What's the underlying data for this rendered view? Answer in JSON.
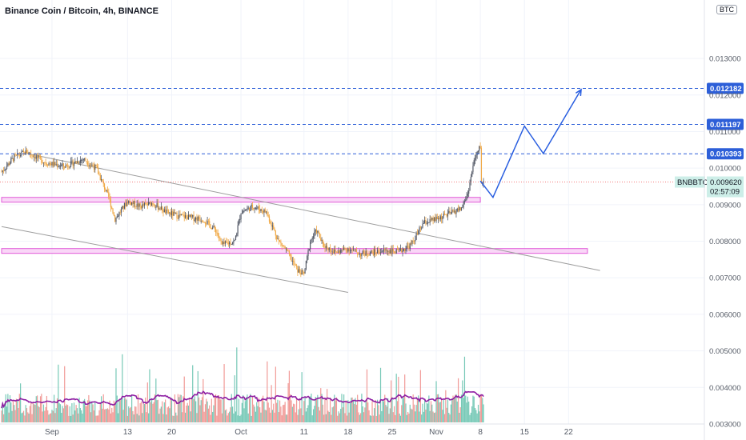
{
  "header": {
    "title": "Binance Coin / Bitcoin, 4h, BINANCE",
    "currency": "BTC"
  },
  "colors": {
    "up": "#525866",
    "down": "#f0a844",
    "vol_up": "#5fbfaa",
    "vol_down": "#ef8a86",
    "vol_ma": "#8e1fa3",
    "level_line": "#2d5fd8",
    "zone_fill": "#f7c6f4",
    "zone_border": "#e05bd8",
    "trend_line": "#9e9e9e",
    "projection": "#2a5fe0",
    "last_price_label": "#cdeee8"
  },
  "chart_data": {
    "type": "candlestick",
    "symbol": "BNBBTC",
    "interval": "4h",
    "y_axis": {
      "scale": "linear",
      "ylim": [
        0.003,
        0.0146
      ],
      "ticks": [
        "0.013000",
        "0.012000",
        "0.011000",
        "0.010000",
        "0.009000",
        "0.008000",
        "0.007000",
        "0.006000",
        "0.005000",
        "0.004000",
        "0.003000"
      ]
    },
    "x_axis": {
      "labels": [
        "Sep",
        "13",
        "20",
        "Oct",
        "11",
        "18",
        "25",
        "Nov",
        "8",
        "15",
        "22"
      ],
      "label_dates": [
        "2021-09-01",
        "2021-09-13",
        "2021-09-20",
        "2021-10-01",
        "2021-10-11",
        "2021-10-18",
        "2021-10-25",
        "2021-11-01",
        "2021-11-08",
        "2021-11-15",
        "2021-11-22"
      ]
    },
    "price_path": {
      "description": "piecewise close path, [date, price]",
      "points": [
        [
          "2021-08-24",
          0.0099
        ],
        [
          "2021-08-26",
          0.0103
        ],
        [
          "2021-08-28",
          0.01045
        ],
        [
          "2021-08-31",
          0.01015
        ],
        [
          "2021-09-03",
          0.01005
        ],
        [
          "2021-09-06",
          0.01025
        ],
        [
          "2021-09-08",
          0.01
        ],
        [
          "2021-09-10",
          0.0092
        ],
        [
          "2021-09-11",
          0.0086
        ],
        [
          "2021-09-13",
          0.0091
        ],
        [
          "2021-09-15",
          0.00895
        ],
        [
          "2021-09-17",
          0.00905
        ],
        [
          "2021-09-19",
          0.0088
        ],
        [
          "2021-09-21",
          0.0087
        ],
        [
          "2021-09-23",
          0.00865
        ],
        [
          "2021-09-25",
          0.0086
        ],
        [
          "2021-09-27",
          0.0083
        ],
        [
          "2021-09-28",
          0.0079
        ],
        [
          "2021-09-30",
          0.008
        ],
        [
          "2021-10-01",
          0.0088
        ],
        [
          "2021-10-03",
          0.00895
        ],
        [
          "2021-10-05",
          0.0088
        ],
        [
          "2021-10-06",
          0.0084
        ],
        [
          "2021-10-07",
          0.008
        ],
        [
          "2021-10-08",
          0.0078
        ],
        [
          "2021-10-10",
          0.0072
        ],
        [
          "2021-10-11",
          0.0071
        ],
        [
          "2021-10-12",
          0.008
        ],
        [
          "2021-10-13",
          0.0083
        ],
        [
          "2021-10-14",
          0.0079
        ],
        [
          "2021-10-16",
          0.0077
        ],
        [
          "2021-10-18",
          0.0078
        ],
        [
          "2021-10-20",
          0.00765
        ],
        [
          "2021-10-22",
          0.0077
        ],
        [
          "2021-10-24",
          0.00775
        ],
        [
          "2021-10-26",
          0.0077
        ],
        [
          "2021-10-28",
          0.0079
        ],
        [
          "2021-10-30",
          0.0085
        ],
        [
          "2021-11-01",
          0.0086
        ],
        [
          "2021-11-03",
          0.00875
        ],
        [
          "2021-11-05",
          0.0089
        ],
        [
          "2021-11-06",
          0.0093
        ],
        [
          "2021-11-07",
          0.0102
        ],
        [
          "2021-11-08",
          0.0106
        ],
        [
          "2021-11-08",
          0.0096
        ]
      ]
    },
    "horizontal_levels": [
      {
        "price": 0.012182,
        "label": "0.012182"
      },
      {
        "price": 0.011197,
        "label": "0.011197"
      },
      {
        "price": 0.010393,
        "label": "0.010393"
      }
    ],
    "last_price": {
      "symbol": "BNBBTC",
      "price": "0.009620",
      "countdown": "02:57:09"
    },
    "support_zones": [
      {
        "from_date": "2021-08-24",
        "to_date": "2021-11-08",
        "low": 0.0091,
        "high": 0.0092
      },
      {
        "from_date": "2021-08-24",
        "to_date": "2021-11-25",
        "low": 0.0077,
        "high": 0.0078
      }
    ],
    "trend_lines": [
      {
        "from": [
          "2021-08-28",
          0.0104
        ],
        "to": [
          "2021-11-27",
          0.0072
        ]
      },
      {
        "from": [
          "2021-08-24",
          0.0084
        ],
        "to": [
          "2021-10-18",
          0.0066
        ]
      }
    ],
    "projection": [
      [
        "2021-11-08",
        0.00965
      ],
      [
        "2021-11-10",
        0.0092
      ],
      [
        "2021-11-15",
        0.01115
      ],
      [
        "2021-11-18",
        0.0104
      ],
      [
        "2021-11-24",
        0.01215
      ]
    ],
    "volume_ma_period": 20
  }
}
